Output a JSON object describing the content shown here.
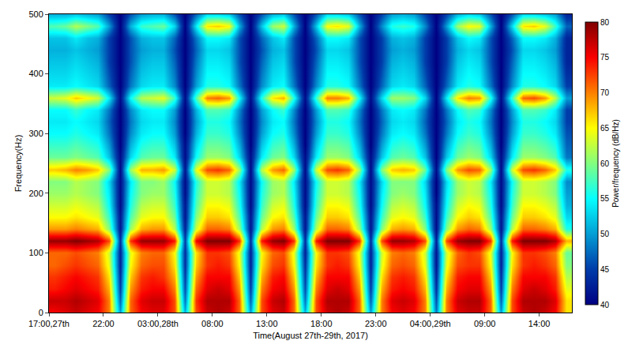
{
  "chart_data": {
    "type": "heatmap",
    "x_label": "Time(August 27th-29th, 2017)",
    "y_label": "Frequency(Hz)",
    "x": [
      "2017-08-27 17:30",
      "2017-08-27 18:30",
      "2017-08-27 19:30",
      "2017-08-27 20:30",
      "2017-08-27 21:30",
      "2017-08-27 22:30",
      "2017-08-27 23:30",
      "2017-08-28 00:30",
      "2017-08-28 01:30",
      "2017-08-28 02:30",
      "2017-08-28 03:30",
      "2017-08-28 04:30",
      "2017-08-28 05:30",
      "2017-08-28 06:30",
      "2017-08-28 07:30",
      "2017-08-28 08:30",
      "2017-08-28 09:30",
      "2017-08-28 10:30",
      "2017-08-28 11:30",
      "2017-08-28 12:30",
      "2017-08-28 13:30",
      "2017-08-28 14:30",
      "2017-08-28 15:30",
      "2017-08-28 16:30",
      "2017-08-28 17:30",
      "2017-08-28 18:30",
      "2017-08-28 19:30",
      "2017-08-28 20:30",
      "2017-08-28 21:30",
      "2017-08-28 22:30",
      "2017-08-28 23:30",
      "2017-08-29 00:30",
      "2017-08-29 01:30",
      "2017-08-29 02:30",
      "2017-08-29 03:30",
      "2017-08-29 04:30",
      "2017-08-29 05:30",
      "2017-08-29 06:30",
      "2017-08-29 07:30",
      "2017-08-29 08:30",
      "2017-08-29 09:30",
      "2017-08-29 10:30",
      "2017-08-29 11:30",
      "2017-08-29 12:30",
      "2017-08-29 13:30",
      "2017-08-29 14:30",
      "2017-08-29 15:30",
      "2017-08-29 16:30"
    ],
    "y": [
      0,
      20,
      40,
      60,
      80,
      100,
      120,
      140,
      160,
      180,
      200,
      220,
      240,
      260,
      280,
      300,
      320,
      340,
      360,
      380,
      400,
      420,
      440,
      460,
      480,
      500
    ],
    "z": [
      [
        75,
        77,
        74,
        73,
        71,
        71,
        79,
        69,
        65,
        63,
        61,
        60,
        67,
        59,
        57,
        55,
        54,
        55,
        63,
        54,
        53,
        52,
        51,
        52,
        58,
        51
      ],
      [
        76,
        77,
        75,
        74,
        72,
        71,
        79,
        69,
        65,
        63,
        61,
        60,
        68,
        59,
        57,
        55,
        54,
        55,
        64,
        54,
        53,
        52,
        51,
        52,
        59,
        51
      ],
      [
        77,
        78,
        76,
        75,
        73,
        72,
        80,
        70,
        66,
        64,
        62,
        62,
        70,
        60,
        58,
        56,
        55,
        57,
        67,
        55,
        54,
        53,
        52,
        54,
        62,
        52
      ],
      [
        76,
        77,
        75,
        74,
        72,
        71,
        79,
        69,
        65,
        63,
        61,
        61,
        69,
        59,
        57,
        55,
        54,
        55,
        65,
        54,
        53,
        52,
        51,
        52,
        60,
        51
      ],
      [
        75,
        76,
        74,
        73,
        71,
        70,
        78,
        68,
        64,
        62,
        60,
        60,
        67,
        58,
        56,
        54,
        53,
        54,
        63,
        53,
        52,
        51,
        50,
        51,
        58,
        50
      ],
      [
        70,
        70,
        68,
        66,
        64,
        63,
        72,
        60,
        57,
        55,
        54,
        53,
        60,
        52,
        50,
        48,
        47,
        48,
        54,
        47,
        46,
        45,
        45,
        45,
        50,
        45
      ],
      [
        50,
        47,
        45,
        44,
        43,
        43,
        44,
        42,
        42,
        41,
        41,
        41,
        41,
        41,
        40,
        40,
        40,
        40,
        41,
        40,
        40,
        40,
        40,
        40,
        40,
        40
      ],
      [
        71,
        71,
        69,
        67,
        65,
        64,
        73,
        61,
        58,
        56,
        55,
        54,
        61,
        53,
        51,
        49,
        48,
        49,
        55,
        48,
        47,
        46,
        46,
        46,
        51,
        46
      ],
      [
        75,
        76,
        74,
        73,
        71,
        70,
        79,
        68,
        64,
        62,
        60,
        60,
        68,
        58,
        56,
        54,
        53,
        54,
        62,
        53,
        52,
        51,
        50,
        51,
        57,
        50
      ],
      [
        76,
        77,
        75,
        74,
        72,
        71,
        79,
        69,
        65,
        63,
        61,
        60,
        68,
        59,
        57,
        55,
        54,
        55,
        63,
        54,
        53,
        52,
        51,
        52,
        58,
        51
      ],
      [
        76,
        77,
        75,
        73,
        72,
        71,
        79,
        69,
        65,
        63,
        61,
        61,
        69,
        59,
        57,
        55,
        54,
        55,
        64,
        54,
        53,
        52,
        51,
        52,
        59,
        51
      ],
      [
        72,
        72,
        70,
        68,
        66,
        65,
        74,
        62,
        59,
        57,
        56,
        55,
        63,
        54,
        52,
        50,
        49,
        50,
        57,
        49,
        48,
        47,
        46,
        47,
        53,
        46
      ],
      [
        51,
        48,
        46,
        45,
        44,
        44,
        45,
        43,
        42,
        42,
        41,
        41,
        42,
        41,
        41,
        40,
        40,
        40,
        41,
        40,
        40,
        40,
        40,
        40,
        40,
        40
      ],
      [
        72,
        73,
        71,
        69,
        67,
        66,
        75,
        63,
        60,
        58,
        57,
        56,
        64,
        55,
        53,
        51,
        50,
        51,
        58,
        50,
        49,
        48,
        47,
        48,
        54,
        47
      ],
      [
        77,
        78,
        76,
        75,
        73,
        73,
        80,
        71,
        67,
        65,
        63,
        63,
        72,
        61,
        59,
        57,
        56,
        58,
        70,
        56,
        55,
        54,
        53,
        55,
        66,
        53
      ],
      [
        78,
        78,
        77,
        75,
        74,
        73,
        80,
        71,
        67,
        65,
        63,
        63,
        73,
        61,
        59,
        57,
        56,
        58,
        71,
        56,
        55,
        54,
        53,
        55,
        67,
        53
      ],
      [
        77,
        78,
        76,
        75,
        73,
        72,
        80,
        70,
        66,
        64,
        62,
        62,
        71,
        60,
        58,
        56,
        55,
        57,
        69,
        55,
        54,
        53,
        52,
        54,
        65,
        52
      ],
      [
        71,
        71,
        69,
        67,
        65,
        64,
        73,
        61,
        58,
        56,
        55,
        54,
        61,
        53,
        51,
        49,
        48,
        49,
        55,
        48,
        47,
        46,
        46,
        46,
        51,
        46
      ],
      [
        50,
        47,
        45,
        44,
        43,
        43,
        44,
        42,
        42,
        41,
        41,
        41,
        41,
        41,
        40,
        40,
        40,
        40,
        41,
        40,
        40,
        40,
        40,
        40,
        40,
        40
      ],
      [
        72,
        72,
        70,
        68,
        66,
        65,
        74,
        62,
        59,
        57,
        56,
        55,
        62,
        54,
        52,
        50,
        49,
        50,
        56,
        49,
        48,
        47,
        46,
        47,
        52,
        46
      ],
      [
        76,
        77,
        75,
        74,
        72,
        71,
        79,
        69,
        65,
        63,
        61,
        61,
        69,
        59,
        57,
        55,
        54,
        55,
        66,
        54,
        53,
        52,
        51,
        52,
        61,
        51
      ],
      [
        77,
        78,
        76,
        75,
        73,
        72,
        80,
        70,
        66,
        64,
        62,
        62,
        71,
        60,
        58,
        56,
        55,
        57,
        68,
        55,
        54,
        53,
        52,
        54,
        63,
        52
      ],
      [
        71,
        71,
        69,
        67,
        65,
        64,
        73,
        61,
        58,
        56,
        55,
        54,
        61,
        53,
        51,
        49,
        48,
        49,
        56,
        48,
        47,
        46,
        46,
        46,
        51,
        46
      ],
      [
        51,
        48,
        46,
        45,
        44,
        43,
        44,
        42,
        42,
        41,
        41,
        41,
        41,
        41,
        40,
        40,
        40,
        40,
        41,
        40,
        40,
        40,
        40,
        40,
        40,
        40
      ],
      [
        72,
        72,
        70,
        68,
        66,
        65,
        74,
        62,
        59,
        57,
        56,
        55,
        63,
        54,
        52,
        50,
        49,
        50,
        57,
        49,
        48,
        47,
        46,
        47,
        52,
        46
      ],
      [
        77,
        78,
        76,
        75,
        73,
        73,
        80,
        71,
        67,
        65,
        63,
        63,
        72,
        61,
        59,
        57,
        56,
        58,
        70,
        56,
        55,
        54,
        53,
        55,
        65,
        53
      ],
      [
        78,
        78,
        77,
        75,
        74,
        73,
        80,
        71,
        67,
        65,
        63,
        63,
        73,
        61,
        59,
        57,
        56,
        58,
        70,
        56,
        55,
        54,
        53,
        55,
        66,
        53
      ],
      [
        77,
        78,
        76,
        75,
        73,
        72,
        80,
        70,
        66,
        64,
        62,
        62,
        71,
        60,
        58,
        56,
        55,
        57,
        68,
        55,
        54,
        53,
        52,
        54,
        64,
        52
      ],
      [
        71,
        71,
        69,
        67,
        65,
        64,
        73,
        61,
        58,
        56,
        55,
        54,
        61,
        53,
        51,
        49,
        48,
        49,
        55,
        48,
        47,
        46,
        46,
        46,
        51,
        46
      ],
      [
        50,
        47,
        45,
        44,
        43,
        43,
        44,
        42,
        42,
        41,
        41,
        41,
        41,
        41,
        40,
        40,
        40,
        40,
        41,
        40,
        40,
        40,
        40,
        40,
        40,
        40
      ],
      [
        70,
        70,
        68,
        66,
        64,
        63,
        72,
        60,
        57,
        55,
        54,
        53,
        60,
        52,
        50,
        48,
        47,
        48,
        53,
        47,
        46,
        45,
        45,
        45,
        49,
        45
      ],
      [
        75,
        76,
        74,
        73,
        71,
        70,
        79,
        68,
        64,
        62,
        60,
        60,
        67,
        58,
        56,
        54,
        53,
        54,
        61,
        53,
        52,
        51,
        50,
        51,
        56,
        50
      ],
      [
        76,
        77,
        75,
        74,
        72,
        71,
        79,
        69,
        65,
        63,
        61,
        60,
        68,
        59,
        57,
        55,
        54,
        55,
        61,
        54,
        53,
        52,
        51,
        52,
        57,
        51
      ],
      [
        75,
        76,
        74,
        73,
        71,
        70,
        78,
        68,
        64,
        62,
        60,
        60,
        67,
        58,
        56,
        54,
        53,
        54,
        60,
        53,
        52,
        51,
        50,
        51,
        56,
        50
      ],
      [
        70,
        70,
        68,
        66,
        64,
        63,
        72,
        60,
        57,
        55,
        54,
        53,
        59,
        52,
        50,
        48,
        47,
        48,
        53,
        47,
        46,
        45,
        45,
        45,
        49,
        45
      ],
      [
        48,
        46,
        44,
        43,
        42,
        42,
        43,
        41,
        41,
        41,
        40,
        40,
        41,
        40,
        40,
        40,
        40,
        40,
        40,
        40,
        40,
        40,
        40,
        40,
        40,
        40
      ],
      [
        70,
        70,
        68,
        66,
        64,
        63,
        72,
        60,
        57,
        55,
        54,
        53,
        60,
        52,
        50,
        48,
        47,
        48,
        54,
        47,
        46,
        45,
        45,
        45,
        50,
        45
      ],
      [
        76,
        77,
        75,
        74,
        72,
        71,
        79,
        69,
        65,
        63,
        61,
        61,
        69,
        59,
        57,
        55,
        54,
        55,
        66,
        54,
        53,
        52,
        51,
        52,
        61,
        51
      ],
      [
        77,
        78,
        76,
        75,
        73,
        73,
        80,
        71,
        67,
        65,
        63,
        63,
        72,
        61,
        59,
        57,
        56,
        58,
        70,
        56,
        55,
        54,
        53,
        55,
        65,
        53
      ],
      [
        77,
        78,
        76,
        75,
        73,
        72,
        80,
        70,
        66,
        64,
        62,
        62,
        71,
        60,
        58,
        56,
        55,
        57,
        69,
        55,
        54,
        53,
        52,
        54,
        64,
        52
      ],
      [
        71,
        71,
        69,
        67,
        65,
        64,
        73,
        61,
        58,
        56,
        55,
        54,
        61,
        53,
        51,
        49,
        48,
        49,
        56,
        48,
        47,
        46,
        46,
        46,
        51,
        46
      ],
      [
        50,
        47,
        45,
        44,
        43,
        43,
        44,
        42,
        42,
        41,
        41,
        41,
        41,
        41,
        40,
        40,
        40,
        40,
        41,
        40,
        40,
        40,
        40,
        40,
        40,
        40
      ],
      [
        72,
        72,
        70,
        68,
        66,
        65,
        74,
        62,
        59,
        57,
        56,
        55,
        63,
        54,
        52,
        50,
        49,
        50,
        57,
        49,
        48,
        47,
        46,
        47,
        53,
        46
      ],
      [
        77,
        78,
        76,
        75,
        73,
        73,
        80,
        71,
        67,
        65,
        63,
        63,
        72,
        61,
        59,
        57,
        56,
        58,
        71,
        56,
        55,
        54,
        53,
        55,
        66,
        53
      ],
      [
        78,
        78,
        77,
        75,
        74,
        73,
        80,
        71,
        67,
        65,
        63,
        63,
        73,
        61,
        59,
        57,
        56,
        58,
        72,
        56,
        55,
        54,
        53,
        55,
        67,
        53
      ],
      [
        77,
        78,
        76,
        75,
        73,
        72,
        80,
        70,
        66,
        64,
        62,
        62,
        71,
        60,
        58,
        56,
        55,
        57,
        69,
        55,
        54,
        53,
        52,
        54,
        64,
        52
      ],
      [
        75,
        76,
        74,
        73,
        71,
        70,
        78,
        68,
        64,
        62,
        60,
        60,
        67,
        58,
        56,
        54,
        53,
        54,
        62,
        53,
        52,
        51,
        50,
        51,
        57,
        50
      ],
      [
        66,
        66,
        64,
        62,
        60,
        59,
        68,
        56,
        53,
        51,
        50,
        49,
        56,
        48,
        47,
        46,
        45,
        45,
        50,
        45,
        44,
        43,
        43,
        43,
        47,
        43
      ]
    ],
    "xlim": [
      "2017-08-27 17:00",
      "2017-08-29 17:00"
    ],
    "xticks": [
      {
        "value": "2017-08-27 17:00",
        "label": "17:00,27th"
      },
      {
        "value": "2017-08-27 22:00",
        "label": "22:00"
      },
      {
        "value": "2017-08-28 03:00",
        "label": "03:00,28th"
      },
      {
        "value": "2017-08-28 08:00",
        "label": "08:00"
      },
      {
        "value": "2017-08-28 13:00",
        "label": "13:00"
      },
      {
        "value": "2017-08-28 18:00",
        "label": "18:00"
      },
      {
        "value": "2017-08-28 23:00",
        "label": "23:00"
      },
      {
        "value": "2017-08-29 04:00",
        "label": "04:00,29th"
      },
      {
        "value": "2017-08-29 09:00",
        "label": "09:00"
      },
      {
        "value": "2017-08-29 14:00",
        "label": "14:00"
      }
    ],
    "ylim": [
      0,
      500
    ],
    "yticks": [
      0,
      100,
      200,
      300,
      400,
      500
    ],
    "colorbar_title": "Power/frequency (dB/Hz)",
    "colorbar_range": [
      40,
      80
    ],
    "colorbar_ticks": [
      40,
      45,
      50,
      55,
      60,
      65,
      70,
      75,
      80
    ],
    "grid": false
  }
}
